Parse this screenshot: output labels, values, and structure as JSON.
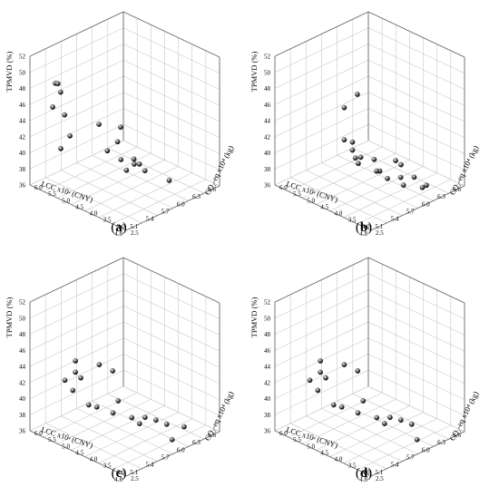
{
  "chart_data": [
    {
      "type": "scatter",
      "panel_label": "a",
      "xlabel": "LCC x10⁴ (CNY)",
      "ylabel": "CO₂-eq x10⁴ (kg)",
      "zlabel": "TPMVD (%)",
      "x_ticks": [
        "4.8",
        "5.1",
        "5.4",
        "5.7",
        "6.0",
        "6.3",
        "6.6"
      ],
      "y_ticks": [
        "2.5",
        "3.0",
        "3.5",
        "4.0",
        "4.5",
        "5.0",
        "5.5",
        "6.0"
      ],
      "z_ticks": [
        "36",
        "38",
        "40",
        "42",
        "44",
        "46",
        "48",
        "50",
        "52"
      ],
      "xlim": [
        4.8,
        6.6
      ],
      "ylim": [
        2.5,
        6.0
      ],
      "zlim": [
        36,
        52
      ],
      "grid": true,
      "points": [
        {
          "x": 5.05,
          "y": 5.55,
          "z": 48.6
        },
        {
          "x": 5.1,
          "y": 5.55,
          "z": 48.4
        },
        {
          "x": 5.1,
          "y": 5.45,
          "z": 47.5
        },
        {
          "x": 5.0,
          "y": 5.55,
          "z": 45.8
        },
        {
          "x": 5.15,
          "y": 5.4,
          "z": 44.6
        },
        {
          "x": 5.2,
          "y": 5.3,
          "z": 42.0
        },
        {
          "x": 5.05,
          "y": 5.35,
          "z": 40.8
        },
        {
          "x": 5.6,
          "y": 5.0,
          "z": 42.7
        },
        {
          "x": 5.7,
          "y": 4.4,
          "z": 43.0
        },
        {
          "x": 5.55,
          "y": 4.6,
          "z": 40.2
        },
        {
          "x": 5.6,
          "y": 4.2,
          "z": 39.6
        },
        {
          "x": 5.8,
          "y": 4.7,
          "z": 40.4
        },
        {
          "x": 5.6,
          "y": 4.0,
          "z": 38.6
        },
        {
          "x": 5.75,
          "y": 4.0,
          "z": 38.9
        },
        {
          "x": 5.85,
          "y": 4.2,
          "z": 38.9
        },
        {
          "x": 5.85,
          "y": 4.0,
          "z": 38.6
        },
        {
          "x": 5.85,
          "y": 3.8,
          "z": 38.1
        },
        {
          "x": 6.0,
          "y": 3.2,
          "z": 37.4
        }
      ]
    },
    {
      "type": "scatter",
      "panel_label": "b",
      "xlabel": "LCC x10⁴ (CNY)",
      "ylabel": "CO₂-eq x10⁴ (kg)",
      "zlabel": "TPMVD (%)",
      "x_ticks": [
        "4.8",
        "5.1",
        "5.4",
        "5.7",
        "6.0",
        "6.3",
        "6.6"
      ],
      "y_ticks": [
        "2.5",
        "3.0",
        "3.5",
        "4.0",
        "4.5",
        "5.0",
        "5.5",
        "6.0"
      ],
      "z_ticks": [
        "36",
        "38",
        "40",
        "42",
        "44",
        "46",
        "48",
        "50",
        "52"
      ],
      "xlim": [
        4.8,
        6.6
      ],
      "ylim": [
        2.5,
        6.0
      ],
      "zlim": [
        36,
        52
      ],
      "grid": true,
      "points": [
        {
          "x": 5.7,
          "y": 4.7,
          "z": 46.6
        },
        {
          "x": 5.5,
          "y": 4.8,
          "z": 45.4
        },
        {
          "x": 5.5,
          "y": 4.8,
          "z": 41.4
        },
        {
          "x": 5.5,
          "y": 4.5,
          "z": 41.6
        },
        {
          "x": 5.5,
          "y": 4.5,
          "z": 40.6
        },
        {
          "x": 5.5,
          "y": 4.2,
          "z": 40.2
        },
        {
          "x": 5.4,
          "y": 4.1,
          "z": 39.9
        },
        {
          "x": 5.45,
          "y": 4.3,
          "z": 40.1
        },
        {
          "x": 5.6,
          "y": 3.9,
          "z": 40.1
        },
        {
          "x": 5.75,
          "y": 3.4,
          "z": 40.3
        },
        {
          "x": 5.8,
          "y": 3.3,
          "z": 39.8
        },
        {
          "x": 5.55,
          "y": 3.6,
          "z": 39.3
        },
        {
          "x": 5.7,
          "y": 4.0,
          "z": 38.2
        },
        {
          "x": 5.75,
          "y": 3.7,
          "z": 37.6
        },
        {
          "x": 5.9,
          "y": 3.5,
          "z": 37.6
        },
        {
          "x": 6.0,
          "y": 3.2,
          "z": 37.8
        },
        {
          "x": 5.9,
          "y": 3.4,
          "z": 36.8
        },
        {
          "x": 6.0,
          "y": 2.9,
          "z": 37.0
        },
        {
          "x": 6.05,
          "y": 2.85,
          "z": 37.2
        }
      ]
    },
    {
      "type": "scatter",
      "panel_label": "c",
      "xlabel": "LCC x10⁴ (CNY)",
      "ylabel": "CO₂-eq x10⁴ (kg)",
      "zlabel": "TPMVD (%)",
      "x_ticks": [
        "4.8",
        "5.1",
        "5.4",
        "5.7",
        "6.0",
        "6.3",
        "6.6"
      ],
      "y_ticks": [
        "2.5",
        "3.0",
        "3.5",
        "4.0",
        "4.5",
        "5.0",
        "5.5",
        "6.0"
      ],
      "z_ticks": [
        "36",
        "38",
        "40",
        "42",
        "44",
        "46",
        "48",
        "50",
        "52"
      ],
      "xlim": [
        4.8,
        6.6
      ],
      "ylim": [
        2.5,
        6.0
      ],
      "zlim": [
        36,
        52
      ],
      "grid": true,
      "points": [
        {
          "x": 5.2,
          "y": 5.1,
          "z": 44.9
        },
        {
          "x": 5.2,
          "y": 5.1,
          "z": 43.5
        },
        {
          "x": 5.05,
          "y": 5.2,
          "z": 42.8
        },
        {
          "x": 5.25,
          "y": 5.0,
          "z": 42.8
        },
        {
          "x": 5.15,
          "y": 5.1,
          "z": 41.4
        },
        {
          "x": 5.5,
          "y": 4.8,
          "z": 44.0
        },
        {
          "x": 5.6,
          "y": 4.5,
          "z": 43.4
        },
        {
          "x": 5.6,
          "y": 4.3,
          "z": 40.0
        },
        {
          "x": 5.35,
          "y": 4.9,
          "z": 39.3
        },
        {
          "x": 5.4,
          "y": 4.7,
          "z": 39.2
        },
        {
          "x": 5.5,
          "y": 4.3,
          "z": 38.8
        },
        {
          "x": 5.65,
          "y": 3.9,
          "z": 38.4
        },
        {
          "x": 5.8,
          "y": 3.7,
          "z": 38.3
        },
        {
          "x": 5.85,
          "y": 3.4,
          "z": 38.3
        },
        {
          "x": 5.9,
          "y": 3.1,
          "z": 38.1
        },
        {
          "x": 5.8,
          "y": 3.9,
          "z": 37.2
        },
        {
          "x": 6.05,
          "y": 2.75,
          "z": 37.9
        },
        {
          "x": 5.95,
          "y": 3.0,
          "z": 36.2
        }
      ]
    },
    {
      "type": "scatter",
      "panel_label": "d",
      "xlabel": "LCC x10⁴ (CNY)",
      "ylabel": "CO₂-eq x10⁴ (kg)",
      "zlabel": "TPMVD (%)",
      "x_ticks": [
        "4.8",
        "5.1",
        "5.4",
        "5.7",
        "6.0",
        "6.3",
        "6.6"
      ],
      "y_ticks": [
        "2.5",
        "3.0",
        "3.5",
        "4.0",
        "4.5",
        "5.0",
        "5.5",
        "6.0"
      ],
      "z_ticks": [
        "36",
        "38",
        "40",
        "42",
        "44",
        "46",
        "48",
        "50",
        "52"
      ],
      "xlim": [
        4.8,
        6.6
      ],
      "ylim": [
        2.5,
        6.0
      ],
      "zlim": [
        36,
        52
      ],
      "grid": true,
      "points": [
        {
          "x": 5.2,
          "y": 5.1,
          "z": 44.9
        },
        {
          "x": 5.2,
          "y": 5.1,
          "z": 43.5
        },
        {
          "x": 5.05,
          "y": 5.2,
          "z": 42.8
        },
        {
          "x": 5.25,
          "y": 5.0,
          "z": 42.8
        },
        {
          "x": 5.15,
          "y": 5.1,
          "z": 41.4
        },
        {
          "x": 5.5,
          "y": 4.8,
          "z": 44.0
        },
        {
          "x": 5.6,
          "y": 4.5,
          "z": 43.4
        },
        {
          "x": 5.6,
          "y": 4.3,
          "z": 40.0
        },
        {
          "x": 5.35,
          "y": 4.9,
          "z": 39.3
        },
        {
          "x": 5.4,
          "y": 4.7,
          "z": 39.2
        },
        {
          "x": 5.5,
          "y": 4.3,
          "z": 38.8
        },
        {
          "x": 5.65,
          "y": 3.9,
          "z": 38.4
        },
        {
          "x": 5.8,
          "y": 3.7,
          "z": 38.3
        },
        {
          "x": 5.85,
          "y": 3.4,
          "z": 38.3
        },
        {
          "x": 5.9,
          "y": 3.1,
          "z": 38.1
        },
        {
          "x": 5.8,
          "y": 3.9,
          "z": 37.2
        },
        {
          "x": 5.95,
          "y": 3.0,
          "z": 36.2
        }
      ]
    }
  ]
}
